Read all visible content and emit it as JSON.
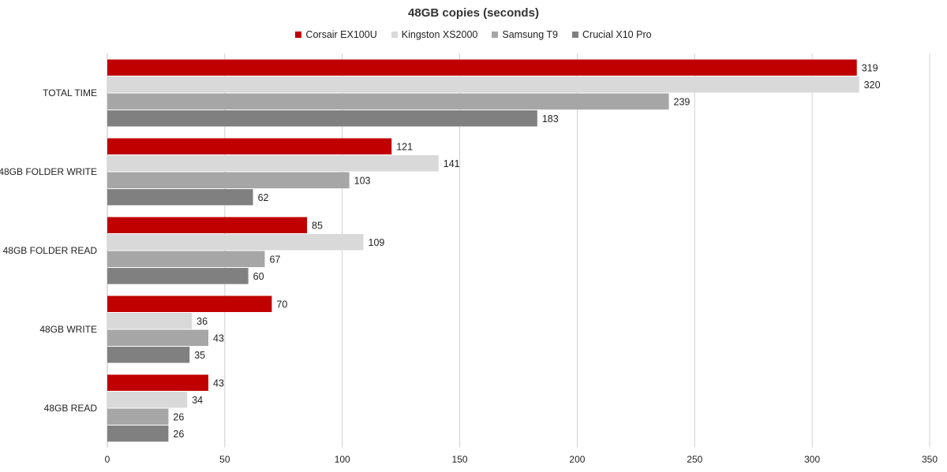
{
  "chart_data": {
    "type": "bar",
    "orientation": "horizontal",
    "title": "48GB copies (seconds)",
    "xlim": [
      0,
      350
    ],
    "x_ticks": [
      0,
      50,
      100,
      150,
      200,
      250,
      300,
      350
    ],
    "grid": "vertical",
    "legend_position": "top-center",
    "categories": [
      "TOTAL TIME",
      "48GB FOLDER WRITE",
      "48GB FOLDER READ",
      "48GB WRITE",
      "48GB READ"
    ],
    "series": [
      {
        "name": "Corsair EX100U",
        "color": "#c00000",
        "values": [
          319,
          121,
          85,
          70,
          43
        ]
      },
      {
        "name": "Kingston XS2000",
        "color": "#d9d9d9",
        "values": [
          320,
          141,
          109,
          36,
          34
        ]
      },
      {
        "name": "Samsung T9",
        "color": "#a6a6a6",
        "values": [
          239,
          103,
          67,
          43,
          26
        ]
      },
      {
        "name": "Crucial X10 Pro",
        "color": "#808080",
        "values": [
          183,
          62,
          60,
          35,
          26
        ]
      }
    ]
  }
}
